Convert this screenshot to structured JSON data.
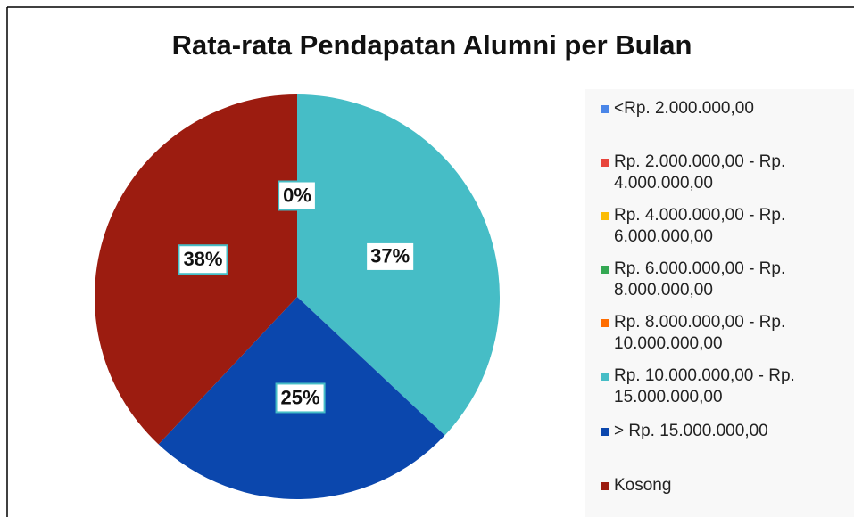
{
  "chart_data": {
    "type": "pie",
    "title": "Rata-rata Pendapatan Alumni per Bulan",
    "categories": [
      "<Rp. 2.000.000,00",
      "Rp. 2.000.000,00 - Rp. 4.000.000,00",
      "Rp. 4.000.000,00 - Rp. 6.000.000,00",
      "Rp. 6.000.000,00 - Rp. 8.000.000,00",
      "Rp. 8.000.000,00 - Rp. 10.000.000,00",
      "Rp. 10.000.000,00 - Rp. 15.000.000,00",
      "> Rp. 15.000.000,00",
      "Kosong"
    ],
    "values": [
      0,
      0,
      0,
      0,
      0,
      37,
      25,
      38
    ],
    "value_labels": [
      "0%",
      "0%",
      "0%",
      "0%",
      "0%",
      "37%",
      "25%",
      "38%"
    ],
    "colors": [
      "#4a86e8",
      "#e8453c",
      "#fbbc04",
      "#34a853",
      "#ff6d01",
      "#46bdc6",
      "#0b47ad",
      "#9c1c10"
    ],
    "legend": "right"
  }
}
